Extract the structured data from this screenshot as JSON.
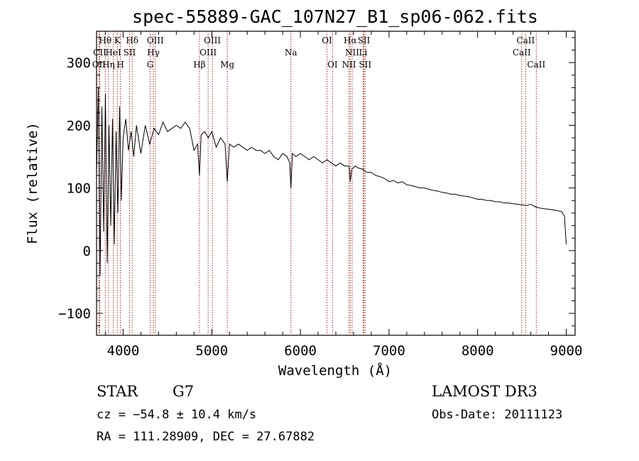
{
  "chart_data": {
    "type": "line",
    "title": "spec-55889-GAC_107N27_B1_sp06-062.fits",
    "xlabel": "Wavelength (Å)",
    "ylabel": "Flux (relative)",
    "xlim": [
      3700,
      9100
    ],
    "ylim": [
      -135,
      350
    ],
    "xticks": [
      4000,
      5000,
      6000,
      7000,
      8000,
      9000
    ],
    "xtick_labels": [
      "4000",
      "5000",
      "6000",
      "7000",
      "8000",
      "9000"
    ],
    "yticks": [
      -100,
      0,
      100,
      200,
      300
    ],
    "ytick_labels": [
      "−100",
      "0",
      "100",
      "200",
      "300"
    ],
    "series": [
      {
        "name": "flux",
        "x": [
          3700,
          3720,
          3740,
          3760,
          3780,
          3800,
          3820,
          3840,
          3860,
          3880,
          3900,
          3920,
          3940,
          3960,
          3980,
          4000,
          4030,
          4060,
          4090,
          4120,
          4150,
          4200,
          4250,
          4300,
          4350,
          4400,
          4450,
          4500,
          4550,
          4600,
          4650,
          4700,
          4750,
          4800,
          4840,
          4861,
          4880,
          4920,
          4960,
          5000,
          5050,
          5100,
          5150,
          5175,
          5200,
          5250,
          5300,
          5350,
          5400,
          5450,
          5500,
          5550,
          5600,
          5650,
          5700,
          5750,
          5800,
          5850,
          5880,
          5893,
          5910,
          5950,
          6000,
          6050,
          6100,
          6150,
          6200,
          6250,
          6300,
          6350,
          6400,
          6450,
          6500,
          6550,
          6563,
          6580,
          6620,
          6650,
          6700,
          6750,
          6800,
          6850,
          6900,
          6950,
          7000,
          7050,
          7100,
          7150,
          7200,
          7250,
          7300,
          7350,
          7400,
          7450,
          7500,
          7550,
          7600,
          7650,
          7700,
          7750,
          7800,
          7850,
          7900,
          7950,
          8000,
          8050,
          8100,
          8150,
          8200,
          8250,
          8300,
          8350,
          8400,
          8450,
          8500,
          8550,
          8600,
          8650,
          8700,
          8750,
          8800,
          8850,
          8900,
          8950,
          8980,
          9000
        ],
        "y": [
          120,
          260,
          -40,
          230,
          30,
          250,
          -20,
          200,
          40,
          210,
          10,
          190,
          60,
          230,
          80,
          180,
          210,
          160,
          190,
          150,
          200,
          155,
          200,
          170,
          195,
          185,
          205,
          190,
          195,
          200,
          195,
          205,
          195,
          160,
          170,
          120,
          185,
          190,
          180,
          190,
          165,
          180,
          170,
          110,
          170,
          165,
          170,
          165,
          160,
          165,
          160,
          160,
          155,
          160,
          150,
          145,
          155,
          150,
          140,
          100,
          155,
          150,
          155,
          150,
          145,
          150,
          145,
          140,
          145,
          140,
          135,
          140,
          135,
          135,
          110,
          130,
          135,
          132,
          130,
          125,
          125,
          120,
          118,
          115,
          110,
          112,
          108,
          110,
          105,
          104,
          102,
          100,
          100,
          98,
          96,
          95,
          93,
          92,
          90,
          90,
          88,
          87,
          86,
          84,
          82,
          82,
          80,
          80,
          78,
          78,
          76,
          76,
          75,
          74,
          73,
          72,
          74,
          70,
          68,
          67,
          66,
          65,
          64,
          62,
          55,
          10
        ]
      }
    ],
    "spectral_lines": [
      {
        "label": "Hθ",
        "wl": 3798,
        "row": 1
      },
      {
        "label": "CII",
        "wl": 3736,
        "row": 2
      },
      {
        "label": "OII",
        "wl": 3727,
        "row": 3
      },
      {
        "label": "K",
        "wl": 3934,
        "row": 1
      },
      {
        "label": "HeI",
        "wl": 3889,
        "row": 2
      },
      {
        "label": "Hη",
        "wl": 3835,
        "row": 3
      },
      {
        "label": "H",
        "wl": 3969,
        "row": 3
      },
      {
        "label": "Hδ",
        "wl": 4102,
        "row": 1
      },
      {
        "label": "SII",
        "wl": 4072,
        "row": 2
      },
      {
        "label": "OIII",
        "wl": 4363,
        "row": 1
      },
      {
        "label": "Hγ",
        "wl": 4341,
        "row": 2
      },
      {
        "label": "G",
        "wl": 4305,
        "row": 3
      },
      {
        "label": "OIII",
        "wl": 5007,
        "row": 1
      },
      {
        "label": "OIII",
        "wl": 4959,
        "row": 2
      },
      {
        "label": "Hβ",
        "wl": 4861,
        "row": 3
      },
      {
        "label": "Mg",
        "wl": 5175,
        "row": 3
      },
      {
        "label": "Na",
        "wl": 5893,
        "row": 2
      },
      {
        "label": "OI",
        "wl": 6300,
        "row": 1
      },
      {
        "label": "OI",
        "wl": 6363,
        "row": 3
      },
      {
        "label": "Hα",
        "wl": 6563,
        "row": 1
      },
      {
        "label": "SII",
        "wl": 6717,
        "row": 1
      },
      {
        "label": "NII",
        "wl": 6584,
        "row": 2
      },
      {
        "label": "Li",
        "wl": 6708,
        "row": 2
      },
      {
        "label": "NII",
        "wl": 6548,
        "row": 3
      },
      {
        "label": "SII",
        "wl": 6731,
        "row": 3
      },
      {
        "label": "CaII",
        "wl": 8542,
        "row": 1
      },
      {
        "label": "CaII",
        "wl": 8498,
        "row": 2
      },
      {
        "label": "CaII",
        "wl": 8662,
        "row": 3
      }
    ]
  },
  "info": {
    "object_class": "STAR",
    "subclass": "G7",
    "redshift_line": "cz = −54.8 ± 10.4 km/s",
    "coords_line": "RA = 111.28909, DEC =  27.67882",
    "survey": "LAMOST DR3",
    "obs_date": "Obs-Date: 20111123"
  },
  "colors": {
    "axis": "#000000",
    "line": "#000000",
    "marker_lines": "#b22222",
    "background": "#ffffff"
  }
}
